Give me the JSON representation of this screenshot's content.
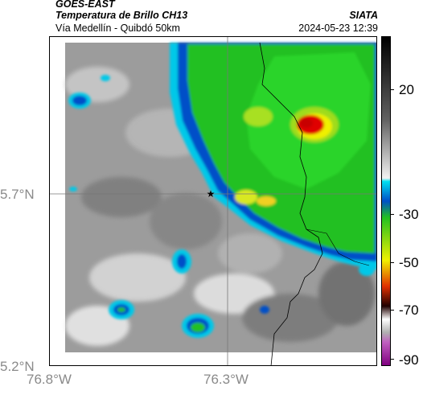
{
  "header": {
    "satellite": "GOES-EAST",
    "product": "Temperatura de Brillo CH13",
    "organization": "SIATA",
    "route": "Vía Medellín - Quibdó 50km",
    "datetime": "2024-05-23 12:39"
  },
  "axes": {
    "lat_labels": [
      "5.7°N",
      "5.2°N"
    ],
    "lon_labels": [
      "76.8°W",
      "76.3°W"
    ]
  },
  "colorbar": {
    "labels": [
      "20",
      "-30",
      "-50",
      "-70",
      "-90"
    ]
  },
  "colors": {
    "land_gray": "#9a9a9a",
    "cloud_cyan": "#00c8e8",
    "cloud_blue": "#0050c8",
    "cloud_green": "#22c020",
    "cloud_yellow": "#f0f000",
    "cloud_red": "#e00000"
  },
  "marker": {
    "symbol": "★"
  }
}
